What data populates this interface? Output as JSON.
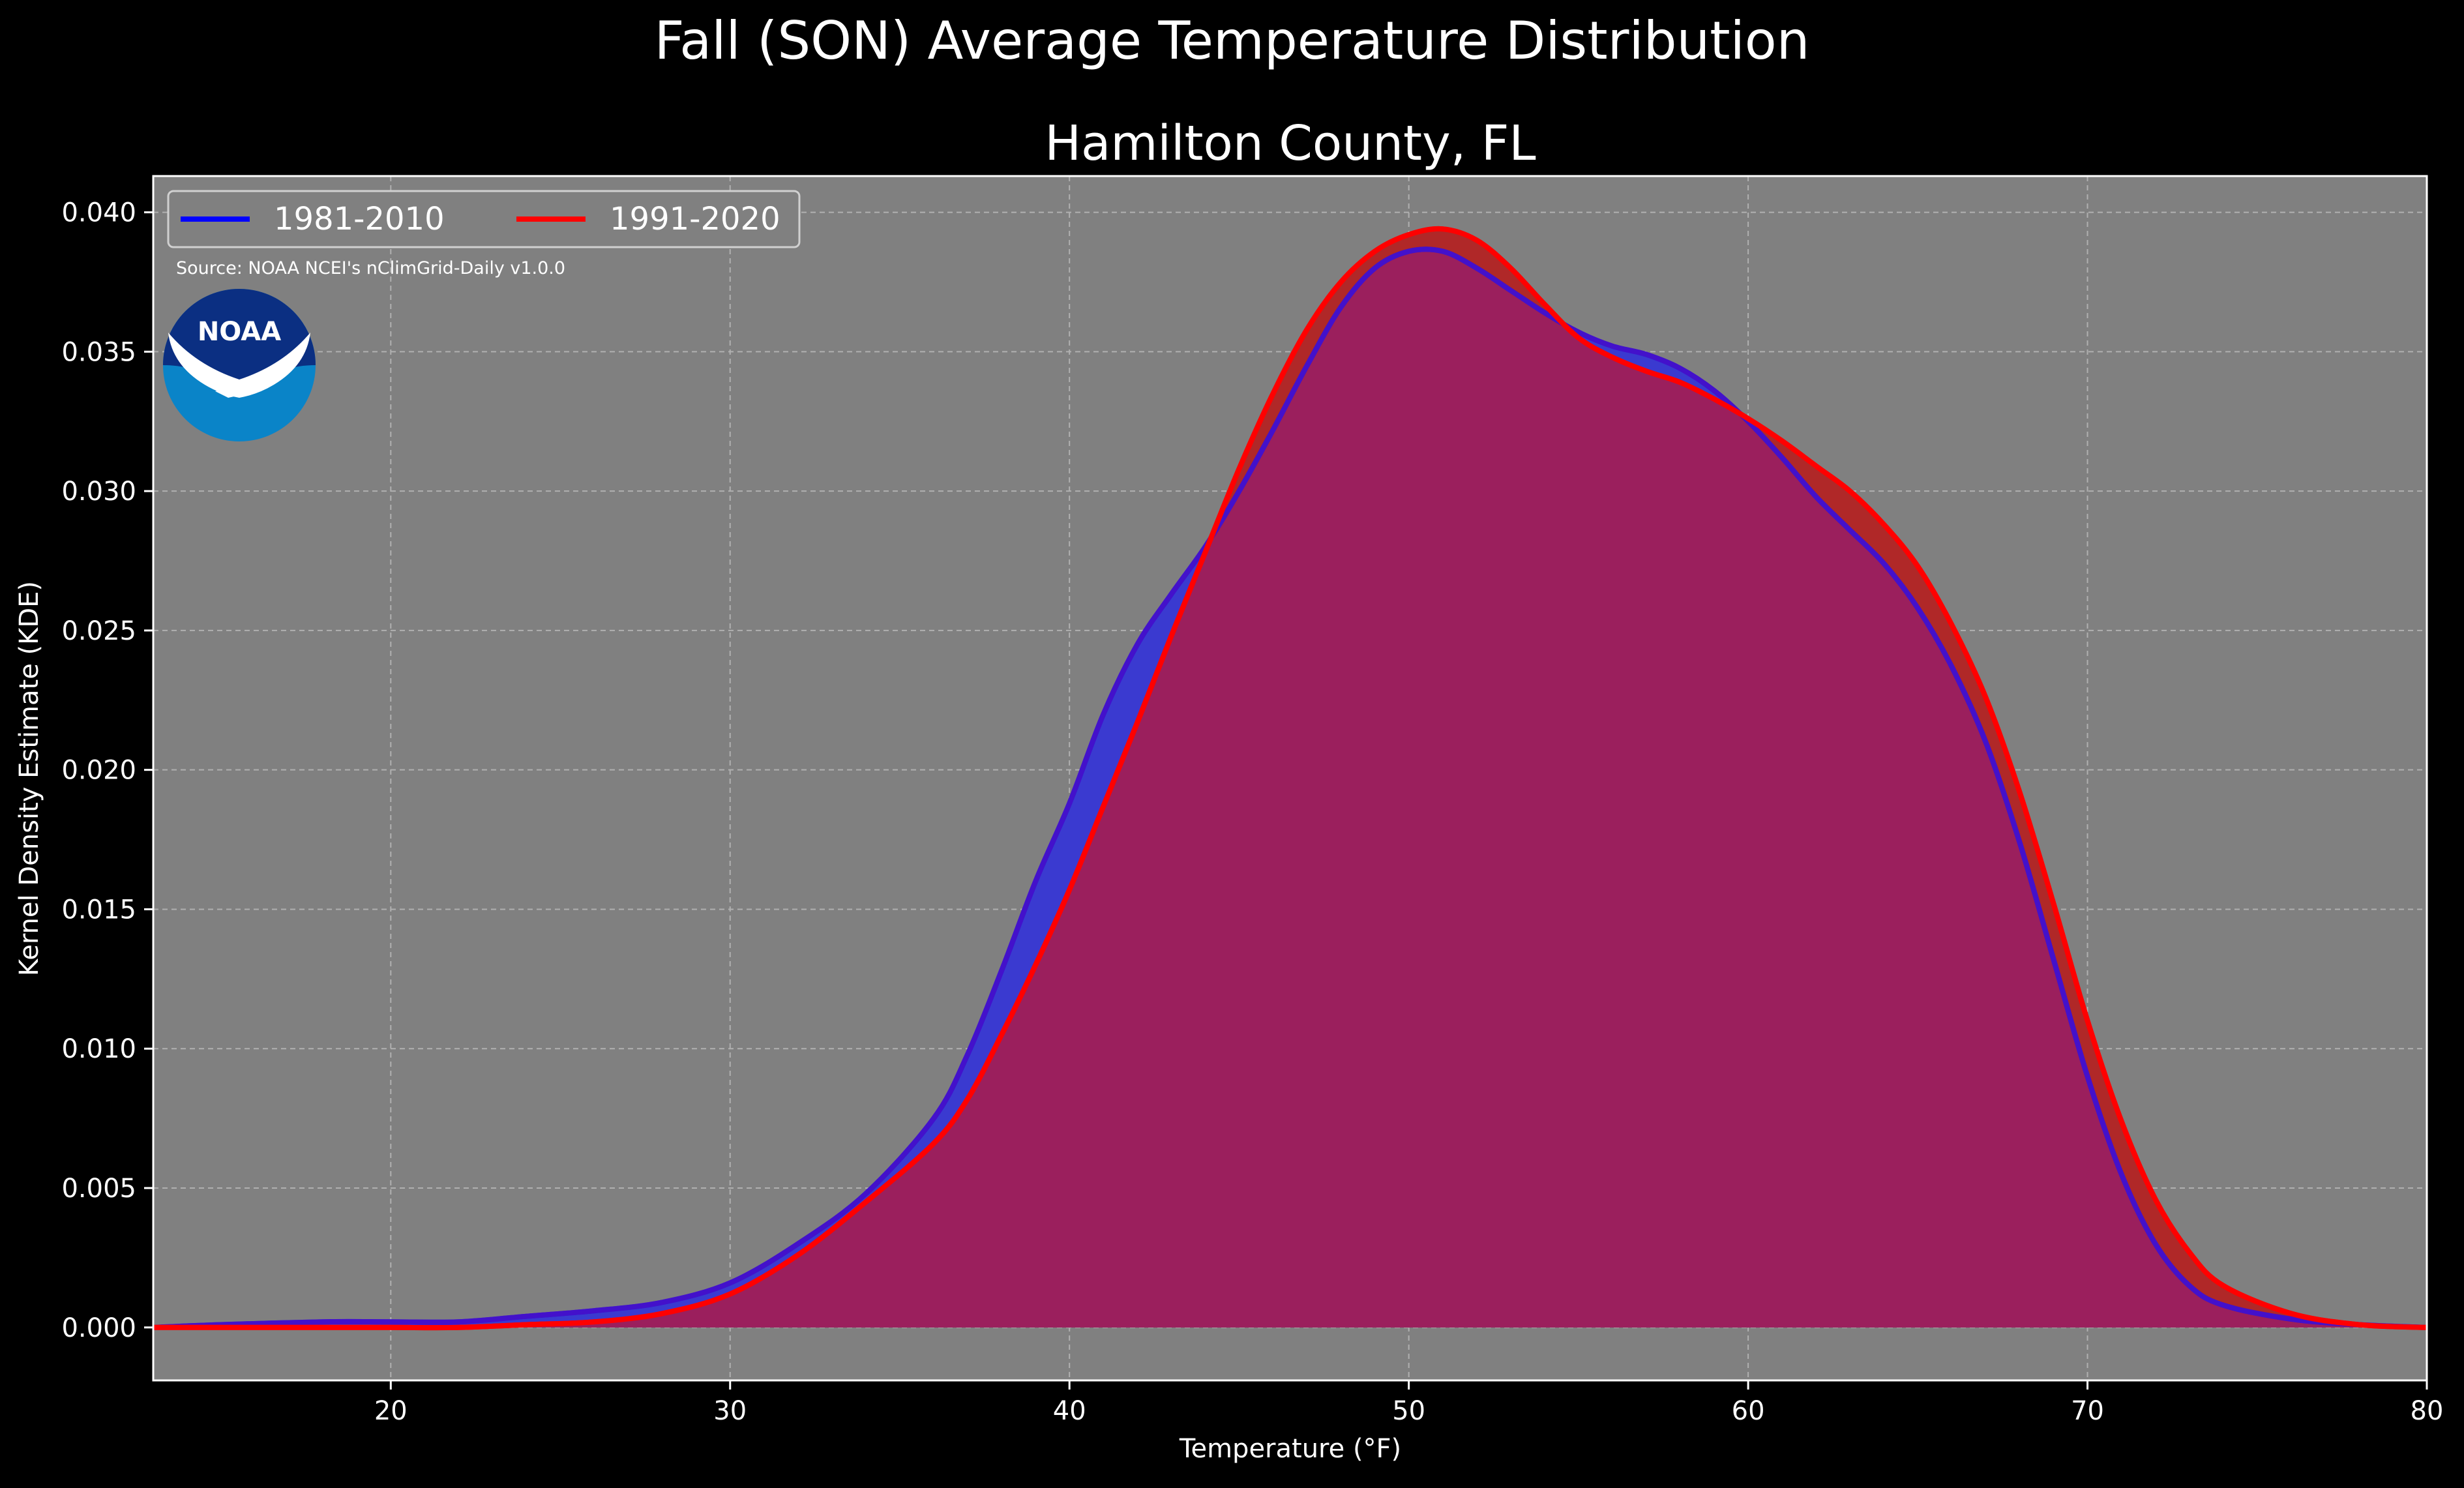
{
  "figure": {
    "suptitle": "Fall (SON) Average Temperature Distribution",
    "source_note": "Source: NOAA NCEI's nClimGrid-Daily v1.0.0",
    "logo_text": "NOAA",
    "background_color": "#000000",
    "plot_background_color": "#808080",
    "text_color": "#ffffff"
  },
  "chart_data": {
    "type": "area",
    "title": "Hamilton County, FL",
    "xlabel": "Temperature (°F)",
    "ylabel": "Kernel Density Estimate (KDE)",
    "xlim": [
      13,
      80
    ],
    "ylim": [
      -0.0019,
      0.0413
    ],
    "xticks": [
      20,
      30,
      40,
      50,
      60,
      70,
      80
    ],
    "yticks": [
      0.0,
      0.005,
      0.01,
      0.015,
      0.02,
      0.025,
      0.03,
      0.035,
      0.04
    ],
    "xtick_labels": [
      "20",
      "30",
      "40",
      "50",
      "60",
      "70",
      "80"
    ],
    "ytick_labels": [
      "0.000",
      "0.005",
      "0.010",
      "0.015",
      "0.020",
      "0.025",
      "0.030",
      "0.035",
      "0.040"
    ],
    "grid": true,
    "legend_position": "top-left",
    "series": [
      {
        "name": "1981-2010",
        "color": "#0000ff",
        "fill_color": "#3a3ad0",
        "points": [
          [
            13,
            0.0
          ],
          [
            15,
            0.0001
          ],
          [
            18,
            0.0002
          ],
          [
            20,
            0.0002
          ],
          [
            22,
            0.0002
          ],
          [
            24,
            0.0004
          ],
          [
            26,
            0.0006
          ],
          [
            28,
            0.0009
          ],
          [
            30,
            0.0016
          ],
          [
            32,
            0.003
          ],
          [
            34,
            0.0048
          ],
          [
            36,
            0.0075
          ],
          [
            37,
            0.0098
          ],
          [
            38,
            0.0128
          ],
          [
            39,
            0.016
          ],
          [
            40,
            0.0188
          ],
          [
            41,
            0.022
          ],
          [
            42,
            0.0245
          ],
          [
            43,
            0.0263
          ],
          [
            44,
            0.028
          ],
          [
            45,
            0.03
          ],
          [
            46,
            0.0322
          ],
          [
            47,
            0.0345
          ],
          [
            48,
            0.0366
          ],
          [
            49,
            0.038
          ],
          [
            50,
            0.0386
          ],
          [
            51,
            0.0386
          ],
          [
            52,
            0.038
          ],
          [
            53,
            0.0372
          ],
          [
            54,
            0.0364
          ],
          [
            55,
            0.0357
          ],
          [
            56,
            0.0352
          ],
          [
            57,
            0.0349
          ],
          [
            58,
            0.0344
          ],
          [
            59,
            0.0336
          ],
          [
            60,
            0.0325
          ],
          [
            61,
            0.0312
          ],
          [
            62,
            0.0298
          ],
          [
            63,
            0.0286
          ],
          [
            64,
            0.0274
          ],
          [
            65,
            0.0258
          ],
          [
            66,
            0.0237
          ],
          [
            67,
            0.021
          ],
          [
            68,
            0.0174
          ],
          [
            69,
            0.0132
          ],
          [
            70,
            0.009
          ],
          [
            71,
            0.0055
          ],
          [
            72,
            0.003
          ],
          [
            73,
            0.0015
          ],
          [
            74,
            0.0008
          ],
          [
            76,
            0.0003
          ],
          [
            78,
            0.0001
          ],
          [
            80,
            0.0
          ]
        ]
      },
      {
        "name": "1991-2020",
        "color": "#ff0000",
        "fill_color": "#b02828",
        "points": [
          [
            13,
            0.0
          ],
          [
            15,
            0.0
          ],
          [
            18,
            0.0
          ],
          [
            20,
            0.0
          ],
          [
            22,
            0.0
          ],
          [
            24,
            0.0001
          ],
          [
            26,
            0.0002
          ],
          [
            28,
            0.0005
          ],
          [
            30,
            0.0012
          ],
          [
            32,
            0.0026
          ],
          [
            34,
            0.0045
          ],
          [
            36,
            0.0066
          ],
          [
            37,
            0.0082
          ],
          [
            38,
            0.0105
          ],
          [
            39,
            0.013
          ],
          [
            40,
            0.0157
          ],
          [
            41,
            0.0187
          ],
          [
            42,
            0.0217
          ],
          [
            43,
            0.0248
          ],
          [
            44,
            0.0278
          ],
          [
            45,
            0.0308
          ],
          [
            46,
            0.0335
          ],
          [
            47,
            0.0358
          ],
          [
            48,
            0.0375
          ],
          [
            49,
            0.0386
          ],
          [
            50,
            0.0392
          ],
          [
            51,
            0.0394
          ],
          [
            52,
            0.039
          ],
          [
            53,
            0.038
          ],
          [
            54,
            0.0367
          ],
          [
            55,
            0.0355
          ],
          [
            56,
            0.0348
          ],
          [
            57,
            0.0343
          ],
          [
            58,
            0.0339
          ],
          [
            59,
            0.0333
          ],
          [
            60,
            0.0326
          ],
          [
            61,
            0.0318
          ],
          [
            62,
            0.0309
          ],
          [
            63,
            0.03
          ],
          [
            64,
            0.0288
          ],
          [
            65,
            0.0273
          ],
          [
            66,
            0.0252
          ],
          [
            67,
            0.0226
          ],
          [
            68,
            0.0192
          ],
          [
            69,
            0.0152
          ],
          [
            70,
            0.011
          ],
          [
            71,
            0.0074
          ],
          [
            72,
            0.0046
          ],
          [
            73,
            0.0027
          ],
          [
            74,
            0.0015
          ],
          [
            76,
            0.0005
          ],
          [
            78,
            0.0001
          ],
          [
            80,
            0.0
          ]
        ]
      }
    ],
    "overlap_fill_color": "#9b1f5d"
  }
}
